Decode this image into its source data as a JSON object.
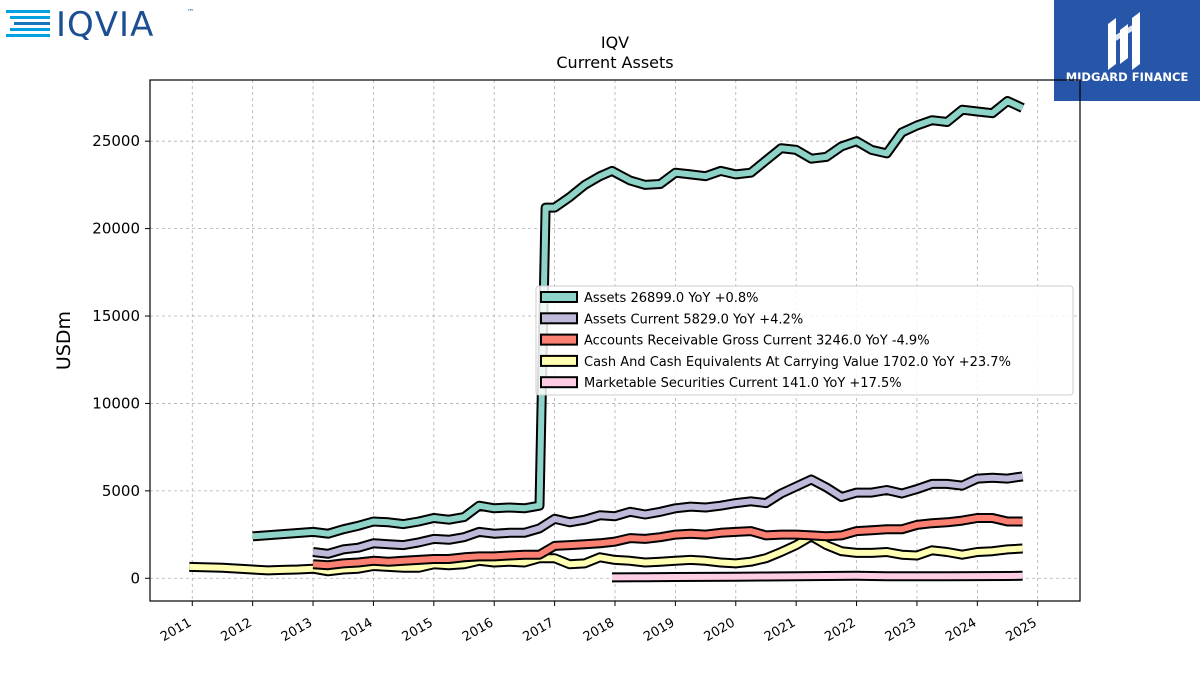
{
  "brand_left": {
    "text": "IQVIA",
    "tm": "™"
  },
  "brand_right": {
    "text": "MIDGARD FINANCE",
    "bg": "#2756a8"
  },
  "chart_data": {
    "type": "line",
    "title": "IQV",
    "subtitle": "Current  Assets",
    "ylabel": "USDm",
    "xlabel": "",
    "xlim": [
      2010.3,
      2025.7
    ],
    "ylim": [
      -1300,
      28500
    ],
    "yticks": [
      0,
      5000,
      10000,
      15000,
      20000,
      25000
    ],
    "xticks": [
      2011,
      2012,
      2013,
      2014,
      2015,
      2016,
      2017,
      2018,
      2019,
      2020,
      2021,
      2022,
      2023,
      2024,
      2025
    ],
    "grid": true,
    "legend_position": "center-right",
    "series": [
      {
        "name": "Assets  26899.0 YoY +0.8%",
        "color": "#8dd3c7",
        "points": [
          [
            2012.0,
            2400
          ],
          [
            2013.0,
            2650
          ],
          [
            2013.25,
            2550
          ],
          [
            2013.5,
            2800
          ],
          [
            2013.75,
            3000
          ],
          [
            2014.0,
            3250
          ],
          [
            2014.25,
            3200
          ],
          [
            2014.5,
            3100
          ],
          [
            2014.75,
            3250
          ],
          [
            2015.0,
            3450
          ],
          [
            2015.25,
            3350
          ],
          [
            2015.5,
            3500
          ],
          [
            2015.75,
            4150
          ],
          [
            2016.0,
            4000
          ],
          [
            2016.25,
            4050
          ],
          [
            2016.5,
            4000
          ],
          [
            2016.75,
            4150
          ],
          [
            2016.85,
            21200
          ],
          [
            2017.0,
            21200
          ],
          [
            2017.25,
            21800
          ],
          [
            2017.5,
            22500
          ],
          [
            2017.75,
            23000
          ],
          [
            2017.95,
            23300
          ],
          [
            2018.25,
            22750
          ],
          [
            2018.5,
            22500
          ],
          [
            2018.75,
            22550
          ],
          [
            2019.0,
            23200
          ],
          [
            2019.25,
            23100
          ],
          [
            2019.5,
            23000
          ],
          [
            2019.75,
            23300
          ],
          [
            2020.0,
            23100
          ],
          [
            2020.25,
            23200
          ],
          [
            2020.5,
            23900
          ],
          [
            2020.75,
            24600
          ],
          [
            2021.0,
            24500
          ],
          [
            2021.25,
            24000
          ],
          [
            2021.5,
            24100
          ],
          [
            2021.75,
            24700
          ],
          [
            2022.0,
            25000
          ],
          [
            2022.25,
            24500
          ],
          [
            2022.5,
            24300
          ],
          [
            2022.75,
            25500
          ],
          [
            2023.0,
            25900
          ],
          [
            2023.25,
            26200
          ],
          [
            2023.5,
            26100
          ],
          [
            2023.75,
            26800
          ],
          [
            2024.0,
            26700
          ],
          [
            2024.25,
            26600
          ],
          [
            2024.5,
            27300
          ],
          [
            2024.75,
            26899
          ]
        ]
      },
      {
        "name": "Assets Current  5829.0 YoY +4.2%",
        "color": "#bebada",
        "points": [
          [
            2013.0,
            1500
          ],
          [
            2013.25,
            1400
          ],
          [
            2013.5,
            1650
          ],
          [
            2013.75,
            1750
          ],
          [
            2014.0,
            2000
          ],
          [
            2014.25,
            1950
          ],
          [
            2014.5,
            1900
          ],
          [
            2014.75,
            2050
          ],
          [
            2015.0,
            2250
          ],
          [
            2015.25,
            2200
          ],
          [
            2015.5,
            2350
          ],
          [
            2015.75,
            2650
          ],
          [
            2016.0,
            2550
          ],
          [
            2016.25,
            2600
          ],
          [
            2016.5,
            2600
          ],
          [
            2016.75,
            2850
          ],
          [
            2017.0,
            3400
          ],
          [
            2017.25,
            3200
          ],
          [
            2017.5,
            3350
          ],
          [
            2017.75,
            3600
          ],
          [
            2018.0,
            3550
          ],
          [
            2018.25,
            3800
          ],
          [
            2018.5,
            3650
          ],
          [
            2018.75,
            3800
          ],
          [
            2019.0,
            4000
          ],
          [
            2019.25,
            4100
          ],
          [
            2019.5,
            4050
          ],
          [
            2019.75,
            4150
          ],
          [
            2020.0,
            4300
          ],
          [
            2020.25,
            4400
          ],
          [
            2020.5,
            4300
          ],
          [
            2020.75,
            4850
          ],
          [
            2021.0,
            5250
          ],
          [
            2021.25,
            5650
          ],
          [
            2021.5,
            5200
          ],
          [
            2021.75,
            4650
          ],
          [
            2022.0,
            4900
          ],
          [
            2022.25,
            4900
          ],
          [
            2022.5,
            5050
          ],
          [
            2022.75,
            4850
          ],
          [
            2023.0,
            5100
          ],
          [
            2023.25,
            5400
          ],
          [
            2023.5,
            5400
          ],
          [
            2023.75,
            5300
          ],
          [
            2024.0,
            5700
          ],
          [
            2024.25,
            5750
          ],
          [
            2024.5,
            5700
          ],
          [
            2024.75,
            5829
          ]
        ]
      },
      {
        "name": "Accounts Receivable Gross Current  3246.0 YoY -4.9%",
        "color": "#fb8072",
        "points": [
          [
            2013.0,
            800
          ],
          [
            2013.25,
            750
          ],
          [
            2013.5,
            850
          ],
          [
            2013.75,
            900
          ],
          [
            2014.0,
            1000
          ],
          [
            2014.25,
            950
          ],
          [
            2014.5,
            1000
          ],
          [
            2014.75,
            1050
          ],
          [
            2015.0,
            1100
          ],
          [
            2015.25,
            1100
          ],
          [
            2015.5,
            1200
          ],
          [
            2015.75,
            1250
          ],
          [
            2016.0,
            1250
          ],
          [
            2016.25,
            1300
          ],
          [
            2016.5,
            1350
          ],
          [
            2016.75,
            1350
          ],
          [
            2017.0,
            1850
          ],
          [
            2017.25,
            1900
          ],
          [
            2017.5,
            1950
          ],
          [
            2017.75,
            2000
          ],
          [
            2018.0,
            2100
          ],
          [
            2018.25,
            2300
          ],
          [
            2018.5,
            2250
          ],
          [
            2018.75,
            2350
          ],
          [
            2019.0,
            2500
          ],
          [
            2019.25,
            2550
          ],
          [
            2019.5,
            2500
          ],
          [
            2019.75,
            2600
          ],
          [
            2020.0,
            2650
          ],
          [
            2020.25,
            2700
          ],
          [
            2020.5,
            2450
          ],
          [
            2020.75,
            2500
          ],
          [
            2021.0,
            2500
          ],
          [
            2021.25,
            2450
          ],
          [
            2021.5,
            2400
          ],
          [
            2021.75,
            2450
          ],
          [
            2022.0,
            2700
          ],
          [
            2022.25,
            2750
          ],
          [
            2022.5,
            2800
          ],
          [
            2022.75,
            2800
          ],
          [
            2023.0,
            3050
          ],
          [
            2023.25,
            3150
          ],
          [
            2023.5,
            3200
          ],
          [
            2023.75,
            3300
          ],
          [
            2024.0,
            3450
          ],
          [
            2024.25,
            3450
          ],
          [
            2024.5,
            3250
          ],
          [
            2024.75,
            3246
          ]
        ]
      },
      {
        "name": "Cash And Cash Equivalents At Carrying Value  1702.0 YoY +23.7%",
        "color": "#ffffb3",
        "points": [
          [
            2010.95,
            650
          ],
          [
            2011.5,
            600
          ],
          [
            2012.0,
            500
          ],
          [
            2012.25,
            450
          ],
          [
            2012.5,
            480
          ],
          [
            2012.75,
            500
          ],
          [
            2013.0,
            550
          ],
          [
            2013.25,
            400
          ],
          [
            2013.5,
            500
          ],
          [
            2013.75,
            550
          ],
          [
            2014.0,
            700
          ],
          [
            2014.25,
            650
          ],
          [
            2014.5,
            600
          ],
          [
            2014.75,
            600
          ],
          [
            2015.0,
            800
          ],
          [
            2015.25,
            750
          ],
          [
            2015.5,
            800
          ],
          [
            2015.75,
            1000
          ],
          [
            2016.0,
            900
          ],
          [
            2016.25,
            950
          ],
          [
            2016.5,
            900
          ],
          [
            2016.75,
            1150
          ],
          [
            2017.0,
            1150
          ],
          [
            2017.25,
            800
          ],
          [
            2017.5,
            850
          ],
          [
            2017.75,
            1200
          ],
          [
            2018.0,
            1050
          ],
          [
            2018.25,
            1000
          ],
          [
            2018.5,
            900
          ],
          [
            2018.75,
            950
          ],
          [
            2019.0,
            1000
          ],
          [
            2019.25,
            1050
          ],
          [
            2019.5,
            1000
          ],
          [
            2019.75,
            900
          ],
          [
            2020.0,
            850
          ],
          [
            2020.25,
            950
          ],
          [
            2020.5,
            1150
          ],
          [
            2020.75,
            1500
          ],
          [
            2021.0,
            1900
          ],
          [
            2021.25,
            2400
          ],
          [
            2021.5,
            1900
          ],
          [
            2021.75,
            1550
          ],
          [
            2022.0,
            1450
          ],
          [
            2022.25,
            1450
          ],
          [
            2022.5,
            1500
          ],
          [
            2022.75,
            1350
          ],
          [
            2023.0,
            1300
          ],
          [
            2023.25,
            1600
          ],
          [
            2023.5,
            1500
          ],
          [
            2023.75,
            1350
          ],
          [
            2024.0,
            1500
          ],
          [
            2024.25,
            1550
          ],
          [
            2024.5,
            1650
          ],
          [
            2024.75,
            1702
          ]
        ]
      },
      {
        "name": "Marketable Securities Current  141.0 YoY +17.5%",
        "color": "#fccde5",
        "points": [
          [
            2017.95,
            50
          ],
          [
            2018.5,
            60
          ],
          [
            2019.0,
            70
          ],
          [
            2019.5,
            80
          ],
          [
            2020.0,
            90
          ],
          [
            2020.5,
            100
          ],
          [
            2021.0,
            110
          ],
          [
            2021.5,
            130
          ],
          [
            2022.0,
            140
          ],
          [
            2022.5,
            120
          ],
          [
            2023.0,
            110
          ],
          [
            2023.5,
            115
          ],
          [
            2024.0,
            125
          ],
          [
            2024.5,
            130
          ],
          [
            2024.75,
            141
          ]
        ]
      }
    ]
  }
}
